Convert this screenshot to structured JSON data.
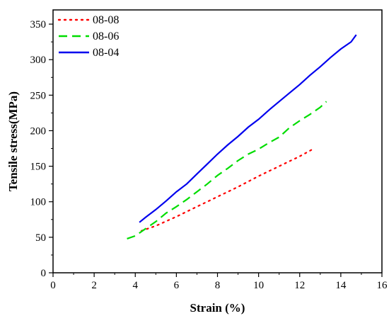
{
  "chart_data": {
    "type": "line",
    "xlabel": "Strain (%)",
    "ylabel": "Tensile stress(MPa)",
    "xlim": [
      0,
      16
    ],
    "ylim": [
      0,
      370
    ],
    "xticks": [
      0,
      2,
      4,
      6,
      8,
      10,
      12,
      14,
      16
    ],
    "yticks": [
      0,
      50,
      100,
      150,
      200,
      250,
      300,
      350
    ],
    "grid": false,
    "legend_position": "top-left",
    "series": [
      {
        "name": "08-08",
        "color": "#ff0000",
        "dash": "dotted",
        "x": [
          4.3,
          5.0,
          6.0,
          7.0,
          8.0,
          9.0,
          10.0,
          11.0,
          12.0,
          12.7
        ],
        "y": [
          59,
          66,
          79,
          93,
          107,
          121,
          136,
          150,
          164,
          175
        ]
      },
      {
        "name": "08-06",
        "color": "#00dd00",
        "dash": "dashed",
        "x": [
          3.6,
          4.0,
          4.5,
          5.0,
          5.5,
          6.0,
          6.5,
          7.0,
          7.5,
          8.0,
          8.5,
          9.0,
          9.5,
          10.0,
          10.5,
          11.0,
          11.5,
          12.0,
          12.5,
          13.0,
          13.3
        ],
        "y": [
          48,
          52,
          62,
          72,
          84,
          93,
          103,
          114,
          125,
          137,
          147,
          158,
          167,
          174,
          183,
          191,
          204,
          214,
          223,
          233,
          241
        ]
      },
      {
        "name": "08-04",
        "color": "#0000ee",
        "dash": "solid",
        "x": [
          4.2,
          4.5,
          5.0,
          5.5,
          6.0,
          6.5,
          7.0,
          7.5,
          8.0,
          8.5,
          9.0,
          9.5,
          10.0,
          10.5,
          11.0,
          11.5,
          12.0,
          12.5,
          13.0,
          13.5,
          14.0,
          14.5,
          14.75
        ],
        "y": [
          71,
          78,
          89,
          101,
          114,
          125,
          139,
          153,
          167,
          180,
          192,
          205,
          216,
          229,
          241,
          253,
          265,
          278,
          290,
          303,
          315,
          325,
          335
        ]
      }
    ]
  }
}
